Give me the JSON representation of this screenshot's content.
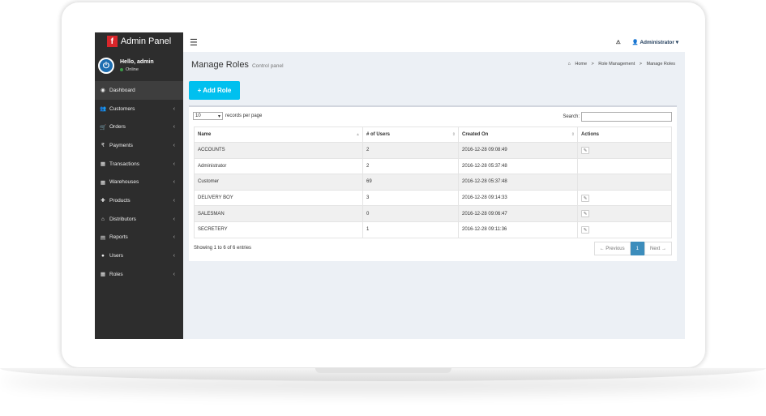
{
  "brand": {
    "title": "Admin Panel",
    "logo_letter": "f"
  },
  "user": {
    "greeting": "Hello, admin",
    "status": "Online"
  },
  "sidebar": {
    "items": [
      {
        "label": "Dashboard",
        "icon": "dashboard-icon",
        "glyph": "◉",
        "active": true,
        "chevron": ""
      },
      {
        "label": "Customers",
        "icon": "users-icon",
        "glyph": "👥",
        "chevron": "‹"
      },
      {
        "label": "Orders",
        "icon": "cart-icon",
        "glyph": "🛒",
        "chevron": "‹"
      },
      {
        "label": "Payments",
        "icon": "rupee-icon",
        "glyph": "₹",
        "chevron": "‹"
      },
      {
        "label": "Transactions",
        "icon": "calendar-icon",
        "glyph": "▦",
        "chevron": "‹"
      },
      {
        "label": "Warehouses",
        "icon": "calendar-icon",
        "glyph": "▦",
        "chevron": "‹"
      },
      {
        "label": "Products",
        "icon": "gift-icon",
        "glyph": "✚",
        "chevron": "‹"
      },
      {
        "label": "Distributors",
        "icon": "home-icon",
        "glyph": "⌂",
        "chevron": "‹"
      },
      {
        "label": "Reports",
        "icon": "file-icon",
        "glyph": "▤",
        "chevron": "‹"
      },
      {
        "label": "Users",
        "icon": "user-icon",
        "glyph": "●",
        "chevron": "‹"
      },
      {
        "label": "Roles",
        "icon": "calendar-icon",
        "glyph": "▦",
        "chevron": "‹"
      }
    ]
  },
  "header": {
    "menu_glyph": "☰",
    "alert_glyph": "⚠",
    "user_glyph": "👤",
    "account": "Administrator ▾"
  },
  "page": {
    "title": "Manage Roles",
    "subtitle": "Control panel",
    "breadcrumb": [
      "Home",
      "Role Management",
      "Manage Roles"
    ],
    "crumb_sep": ">",
    "home_glyph": "⌂",
    "add_button": "+ Add Role"
  },
  "table": {
    "length_value": "10",
    "length_arrow": "▾",
    "length_label": "records per page",
    "search_label": "Search:",
    "columns": [
      "Name",
      "# of Users",
      "Created On",
      "Actions"
    ],
    "sort_glyphs": [
      "▲",
      "⇕",
      "⇕",
      ""
    ],
    "edit_glyph": "✎",
    "rows": [
      {
        "name": "ACCOUNTS",
        "users": "2",
        "created": "2016-12-28 09:08:49",
        "editable": true
      },
      {
        "name": "Administrator",
        "users": "2",
        "created": "2016-12-28 05:37:48",
        "editable": false
      },
      {
        "name": "Customer",
        "users": "69",
        "created": "2016-12-28 05:37:48",
        "editable": false
      },
      {
        "name": "DELIVERY BOY",
        "users": "3",
        "created": "2016-12-28 09:14:33",
        "editable": true
      },
      {
        "name": "SALESMAN",
        "users": "0",
        "created": "2016-12-28 09:06:47",
        "editable": true
      },
      {
        "name": "SECRETERY",
        "users": "1",
        "created": "2016-12-28 09:11:36",
        "editable": true
      }
    ],
    "info": "Showing 1 to 6 of 6 entries",
    "pager": {
      "prev": "← Previous",
      "current": "1",
      "next": "Next →"
    }
  }
}
